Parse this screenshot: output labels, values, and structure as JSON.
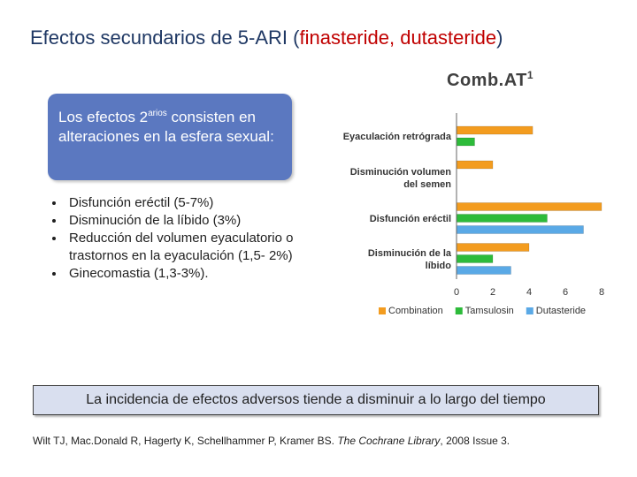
{
  "slide": {
    "title_main": "Efectos secundarios de 5-ARI (",
    "title_drugs": "finasteride, dutasteride",
    "title_close": ")",
    "infobox": {
      "text_before": "Los efectos 2",
      "superscript": "arios",
      "text_after": " consisten en alteraciones en la esfera sexual:"
    },
    "bullets": [
      "Disfunción eréctil (5-7%)",
      "Disminución de la líbido (3%)",
      "Reducción del volumen eyaculatorio o trastornos en la eyaculación (1,5- 2%)",
      "Ginecomastia (1,3-3%)."
    ],
    "banner": "La incidencia de efectos adversos tiende a disminuir a lo largo del tiempo",
    "citation_authors": "Wilt TJ, Mac.Donald R, Hagerty K, Schellhammer P, Kramer BS. ",
    "citation_journal": "The Cochrane Library",
    "citation_rest": ", 2008 Issue 3."
  },
  "chart_data": {
    "type": "bar",
    "orientation": "horizontal",
    "title": "Comb.AT",
    "title_superscript": "1",
    "categories": [
      [
        "Eyaculación retrógrada"
      ],
      [
        "Disminución volumen",
        "del semen"
      ],
      [
        "Disfunción eréctil"
      ],
      [
        "Disminución de la",
        "líbido"
      ]
    ],
    "series": [
      {
        "name": "Combination",
        "color": "#f39c1f",
        "values": [
          4.2,
          2.0,
          8.0,
          4.0
        ]
      },
      {
        "name": "Tamsulosin",
        "color": "#2dbb3a",
        "values": [
          1.0,
          null,
          5.0,
          2.0
        ]
      },
      {
        "name": "Dutasteride",
        "color": "#5aa9e6",
        "values": [
          null,
          null,
          7.0,
          3.0
        ]
      }
    ],
    "xlim": [
      0,
      8
    ],
    "xticks": [
      0,
      2,
      4,
      6,
      8
    ],
    "grid": false,
    "legend": "bottom"
  }
}
